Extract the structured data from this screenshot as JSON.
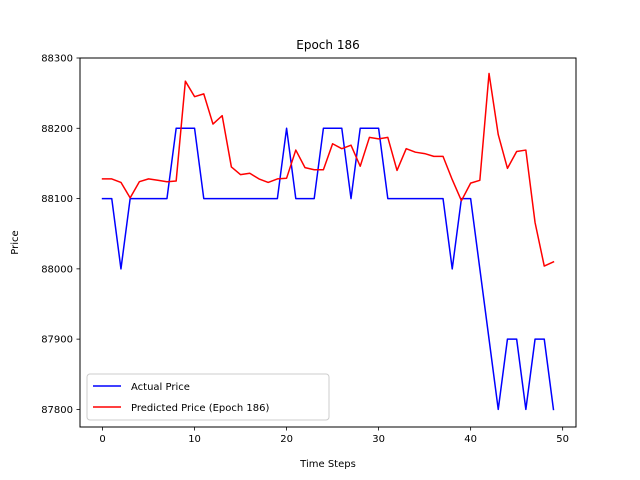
{
  "chart_data": {
    "type": "line",
    "title": "Epoch 186",
    "xlabel": "Time Steps",
    "ylabel": "Price",
    "xlim": [
      -2.45,
      51.45
    ],
    "ylim": [
      87775,
      88300
    ],
    "xticks": [
      0,
      10,
      20,
      30,
      40,
      50
    ],
    "yticks": [
      87800,
      87900,
      88000,
      88100,
      88200,
      88300
    ],
    "grid": false,
    "legend_position": "lower-left",
    "x": [
      0,
      1,
      2,
      3,
      4,
      5,
      6,
      7,
      8,
      9,
      10,
      11,
      12,
      13,
      14,
      15,
      16,
      17,
      18,
      19,
      20,
      21,
      22,
      23,
      24,
      25,
      26,
      27,
      28,
      29,
      30,
      31,
      32,
      33,
      34,
      35,
      36,
      37,
      38,
      39,
      40,
      41,
      42,
      43,
      44,
      45,
      46,
      47,
      48,
      49
    ],
    "series": [
      {
        "name": "Actual Price",
        "color": "#0000ff",
        "values": [
          88100,
          88100,
          88000,
          88100,
          88100,
          88100,
          88100,
          88100,
          88200,
          88200,
          88200,
          88100,
          88100,
          88100,
          88100,
          88100,
          88100,
          88100,
          88100,
          88100,
          88200,
          88100,
          88100,
          88100,
          88200,
          88200,
          88200,
          88100,
          88200,
          88200,
          88200,
          88100,
          88100,
          88100,
          88100,
          88100,
          88100,
          88100,
          88000,
          88100,
          88100,
          88000,
          87900,
          87800,
          87900,
          87900,
          87800,
          87900,
          87900,
          87800
        ]
      },
      {
        "name": "Predicted Price (Epoch 186)",
        "color": "#ff0000",
        "values": [
          88128,
          88128,
          88123,
          88101,
          88124,
          88128,
          88126,
          88124,
          88125,
          88267,
          88245,
          88249,
          88206,
          88218,
          88145,
          88134,
          88136,
          88128,
          88123,
          88128,
          88129,
          88169,
          88144,
          88141,
          88141,
          88178,
          88171,
          88176,
          88146,
          88187,
          88185,
          88187,
          88140,
          88171,
          88166,
          88164,
          88160,
          88160,
          88127,
          88097,
          88122,
          88126,
          88278,
          88191,
          88143,
          88167,
          88169,
          88066,
          88004,
          88010
        ]
      }
    ]
  }
}
